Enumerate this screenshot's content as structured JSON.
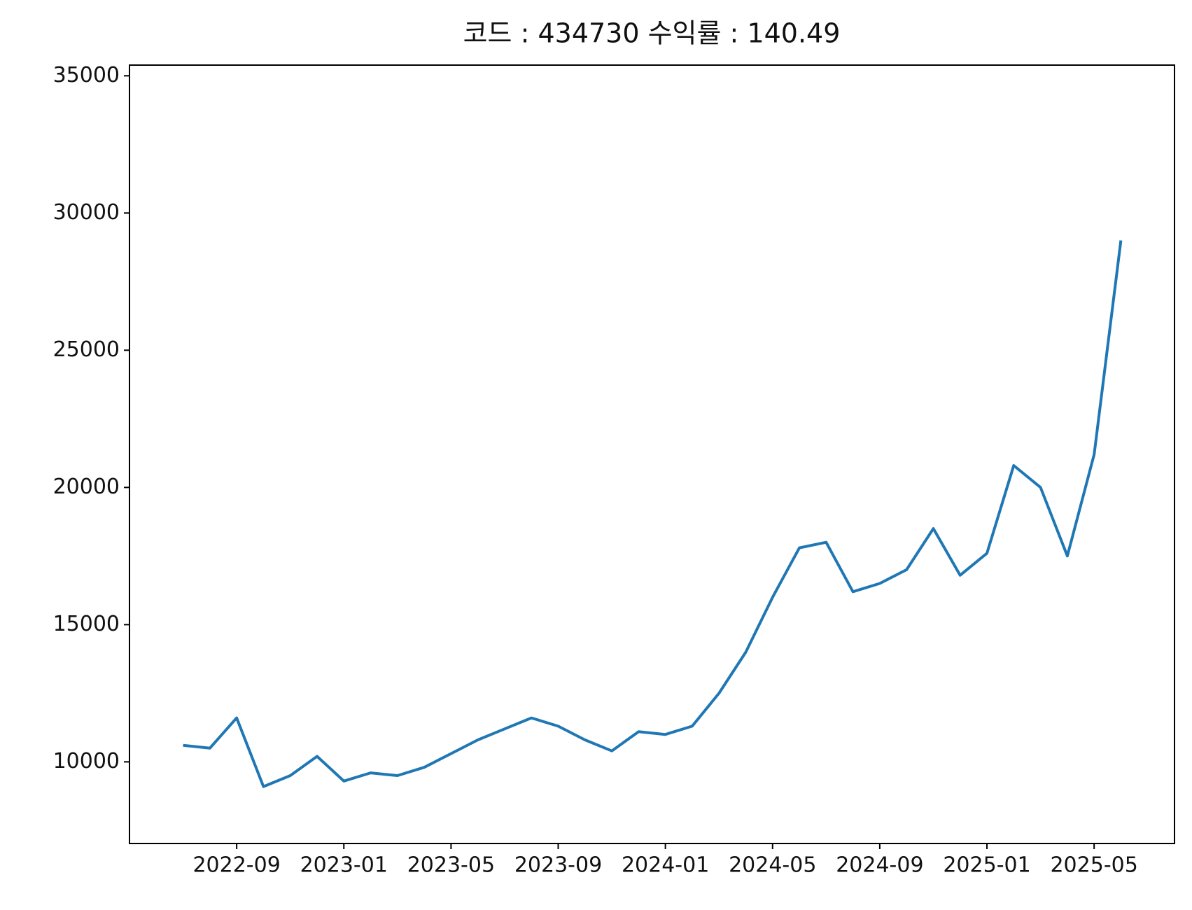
{
  "chart_data": {
    "type": "line",
    "title": "코드 : 434730 수익률 : 140.49",
    "x": [
      "2022-07",
      "2022-08",
      "2022-09",
      "2022-10",
      "2022-11",
      "2022-12",
      "2023-01",
      "2023-02",
      "2023-03",
      "2023-04",
      "2023-05",
      "2023-06",
      "2023-07",
      "2023-08",
      "2023-09",
      "2023-10",
      "2023-11",
      "2023-12",
      "2024-01",
      "2024-02",
      "2024-03",
      "2024-04",
      "2024-05",
      "2024-06",
      "2024-07",
      "2024-08",
      "2024-09",
      "2024-10",
      "2024-11",
      "2024-12",
      "2025-01",
      "2025-02",
      "2025-03",
      "2025-04",
      "2025-05",
      "2025-06"
    ],
    "series": [
      {
        "color": "#1f77b4",
        "values": [
          10600,
          10500,
          11600,
          9100,
          9500,
          10200,
          9300,
          9600,
          9500,
          9800,
          10300,
          10800,
          11200,
          11600,
          11300,
          10800,
          10400,
          11100,
          11000,
          11300,
          12500,
          14000,
          16000,
          17800,
          18000,
          16200,
          16500,
          17000,
          18500,
          16800,
          17600,
          20800,
          20000,
          17500,
          21200,
          29000
        ]
      }
    ],
    "xlim": [
      "2022-05",
      "2025-08"
    ],
    "xticks": [
      "2022-09",
      "2023-01",
      "2023-05",
      "2023-09",
      "2024-01",
      "2024-05",
      "2024-09",
      "2025-01",
      "2025-05"
    ],
    "ylim": [
      7025,
      35390
    ],
    "yticks": [
      10000,
      15000,
      20000,
      25000,
      30000,
      35000
    ]
  }
}
